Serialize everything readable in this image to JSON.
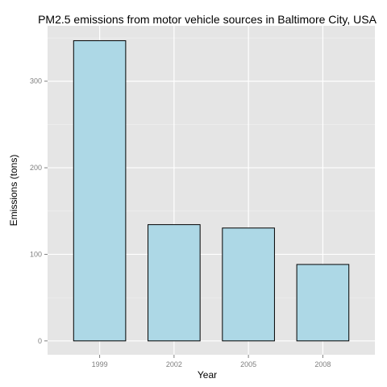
{
  "chart_data": {
    "type": "bar",
    "title": "PM2.5 emissions from motor vehicle sources in Baltimore City, USA",
    "xlabel": "Year",
    "ylabel": "Emissions (tons)",
    "categories": [
      "1999",
      "2002",
      "2005",
      "2008"
    ],
    "values": [
      346.8,
      134.3,
      130.4,
      88.3
    ],
    "ylim": [
      -16,
      364
    ],
    "yticks": [
      0,
      100,
      200,
      300
    ],
    "grid": true,
    "legend": "none",
    "colors": {
      "bar_fill": "#ADD8E6",
      "bar_stroke": "#000000",
      "panel_background": "#E5E5E5",
      "grid_major": "#FFFFFF",
      "grid_minor": "#F2F2F2",
      "tick_label": "#7F7F7F"
    }
  }
}
